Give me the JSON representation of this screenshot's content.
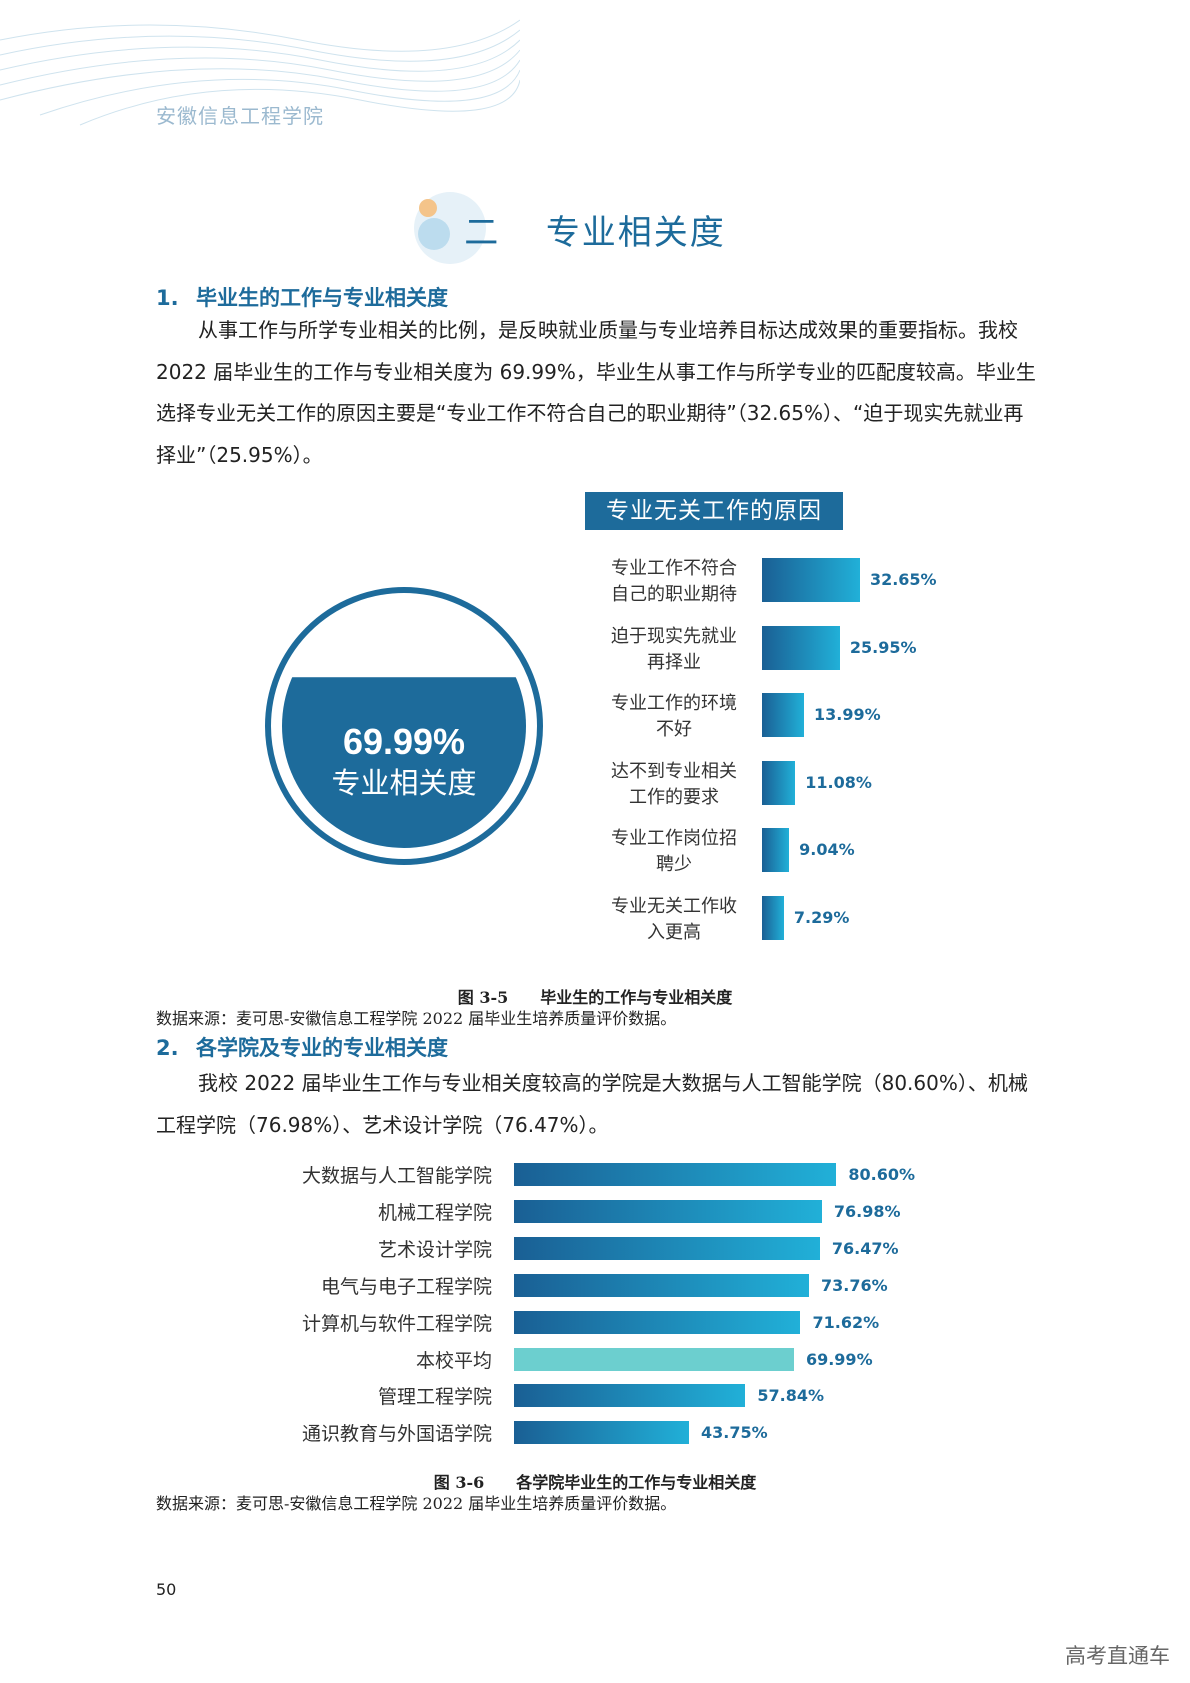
{
  "header": {
    "school": "安徽信息工程学院"
  },
  "section": {
    "number": "二",
    "title": "专业相关度"
  },
  "part1": {
    "num": "1.",
    "heading": "毕业生的工作与专业相关度",
    "paragraph": "从事工作与所学专业相关的比例，是反映就业质量与专业培养目标达成效果的重要指标。我校 2022 届毕业生的工作与专业相关度为 69.99%，毕业生从事工作与所学专业的匹配度较高。毕业生选择专业无关工作的原因主要是“专业工作不符合自己的职业期待”（32.65%）、“迫于现实先就业再择业”（25.95%）。"
  },
  "gauge": {
    "value_label": "69.99%",
    "label": "专业相关度",
    "fill_fraction": 0.6999,
    "color": "#1d6b9b"
  },
  "chart_data": [
    {
      "type": "bar",
      "title": "专业无关工作的原因",
      "categories": [
        [
          "专业工作不符合",
          "自己的职业期待"
        ],
        [
          "迫于现实先就业",
          "再择业"
        ],
        [
          "专业工作的环境",
          "不好"
        ],
        [
          "达不到专业相关",
          "工作的要求"
        ],
        [
          "专业工作岗位招",
          "聘少"
        ],
        [
          "专业无关工作收",
          "入更高"
        ]
      ],
      "values": [
        32.65,
        25.95,
        13.99,
        11.08,
        9.04,
        7.29
      ],
      "value_labels": [
        "32.65%",
        "25.95%",
        "13.99%",
        "11.08%",
        "9.04%",
        "7.29%"
      ],
      "orientation": "horizontal"
    },
    {
      "type": "bar",
      "title": "",
      "categories": [
        "大数据与人工智能学院",
        "机械工程学院",
        "艺术设计学院",
        "电气与电子工程学院",
        "计算机与软件工程学院",
        "本校平均",
        "管理工程学院",
        "通识教育与外国语学院"
      ],
      "values": [
        80.6,
        76.98,
        76.47,
        73.76,
        71.62,
        69.99,
        57.84,
        43.75
      ],
      "value_labels": [
        "80.60%",
        "76.98%",
        "76.47%",
        "73.76%",
        "71.62%",
        "69.99%",
        "57.84%",
        "43.75%"
      ],
      "highlight_index": 5,
      "orientation": "horizontal"
    }
  ],
  "fig1": {
    "caption": "图 3-5　　毕业生的工作与专业相关度",
    "source": "数据来源：麦可思-安徽信息工程学院 2022 届毕业生培养质量评价数据。"
  },
  "part2": {
    "num": "2.",
    "heading": "各学院及专业的专业相关度",
    "paragraph": "我校 2022 届毕业生工作与专业相关度较高的学院是大数据与人工智能学院（80.60%）、机械工程学院（76.98%）、艺术设计学院（76.47%）。"
  },
  "fig2": {
    "caption": "图 3-6　　各学院毕业生的工作与专业相关度",
    "source": "数据来源：麦可思-安徽信息工程学院 2022 届毕业生培养质量评价数据。"
  },
  "footer": {
    "page": "50",
    "watermark": "高考直通车"
  },
  "colors": {
    "brand": "#1d6b9b",
    "bar_dark": "#1a5f94",
    "bar_light": "#21b0d8",
    "highlight": "#6ccfcf"
  }
}
